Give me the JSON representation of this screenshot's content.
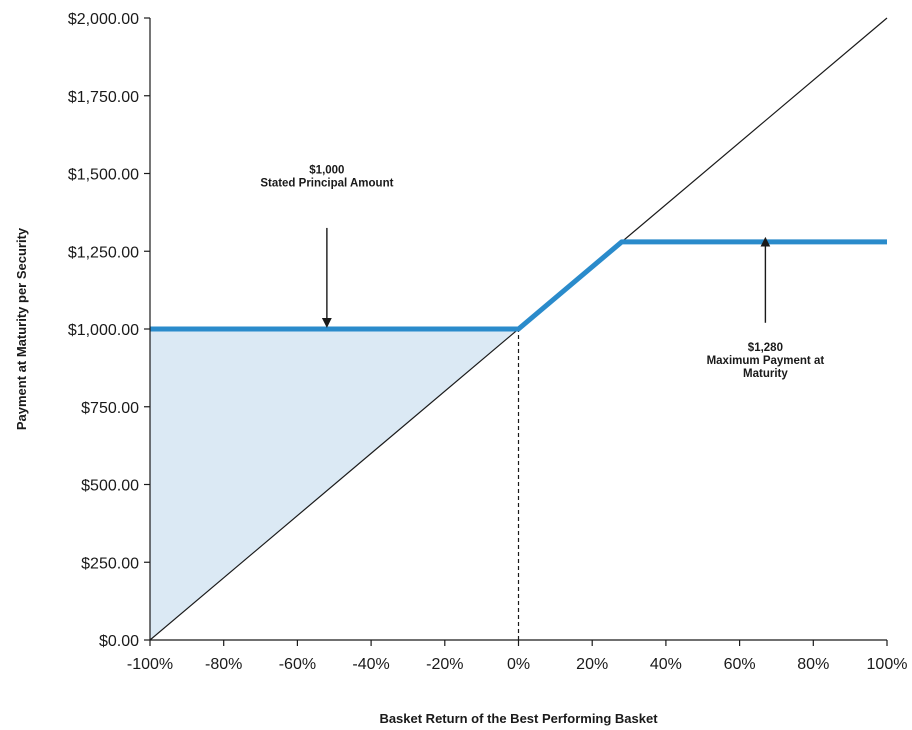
{
  "chart_data": {
    "type": "line",
    "title": "",
    "xlabel": "Basket Return of the Best Performing Basket",
    "ylabel": "Payment at Maturity per Security",
    "xlim": [
      -100,
      100
    ],
    "ylim": [
      0,
      2000
    ],
    "x_ticks": [
      -100,
      -80,
      -60,
      -40,
      -20,
      0,
      20,
      40,
      60,
      80,
      100
    ],
    "x_tick_labels": [
      "-100%",
      "-80%",
      "-60%",
      "-40%",
      "-20%",
      "0%",
      "20%",
      "40%",
      "60%",
      "80%",
      "100%"
    ],
    "y_ticks": [
      0,
      250,
      500,
      750,
      1000,
      1250,
      1500,
      1750,
      2000
    ],
    "y_tick_labels": [
      "$0.00",
      "$250.00",
      "$500.00",
      "$750.00",
      "$1,000.00",
      "$1,250.00",
      "$1,500.00",
      "$1,750.00",
      "$2,000.00"
    ],
    "grid": false,
    "series": [
      {
        "role": "reference",
        "color": "#1a1a1a",
        "x": [
          -100,
          100
        ],
        "y": [
          0,
          2000
        ]
      },
      {
        "role": "payoff",
        "color": "#2a8bcb",
        "x": [
          -100,
          0,
          28,
          100
        ],
        "y": [
          1000,
          1000,
          1280,
          1280
        ]
      }
    ],
    "shaded_region": {
      "color": "#dbe9f4",
      "x": [
        -100,
        0,
        -100
      ],
      "y": [
        1000,
        1000,
        0
      ]
    },
    "vertical_marker": {
      "x": 0,
      "y": [
        0,
        1000
      ],
      "style": "dashed"
    },
    "annotations": [
      {
        "lines": [
          "$1,000",
          "Stated Principal Amount"
        ],
        "text_x": -52,
        "text_y": 1500,
        "arrow_from": [
          -52,
          1325
        ],
        "arrow_to": [
          -52,
          1010
        ]
      },
      {
        "lines": [
          "$1,280",
          "Maximum Payment at",
          "Maturity"
        ],
        "text_x": 67,
        "text_y": 930,
        "arrow_from": [
          67,
          1020
        ],
        "arrow_to": [
          67,
          1290
        ]
      }
    ]
  }
}
